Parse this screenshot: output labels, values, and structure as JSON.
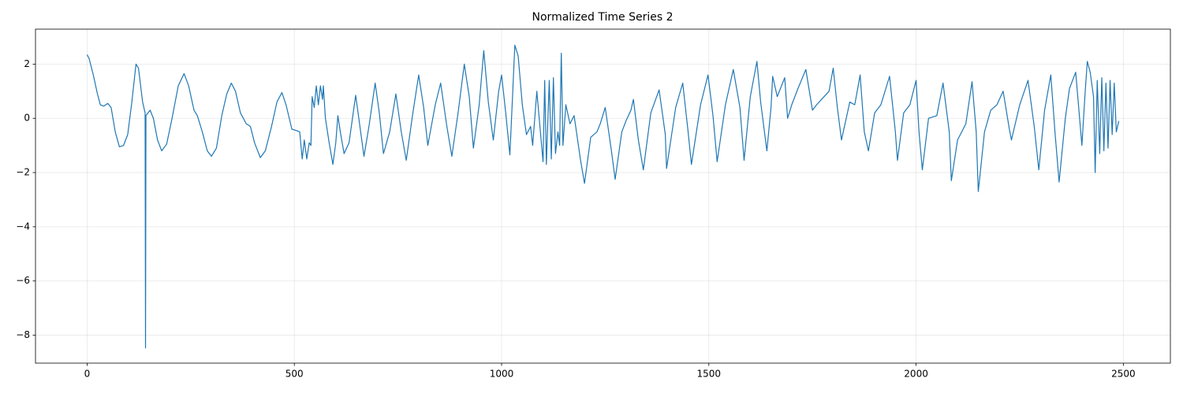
{
  "chart_data": {
    "type": "line",
    "title": "Normalized Time Series 2",
    "x": [
      0,
      5,
      15,
      25,
      32,
      40,
      50,
      58,
      68,
      78,
      88,
      98,
      108,
      118,
      124,
      134,
      140,
      141,
      142,
      152,
      160,
      170,
      180,
      192,
      205,
      220,
      234,
      245,
      258,
      266,
      278,
      290,
      300,
      312,
      325,
      337,
      348,
      358,
      370,
      384,
      394,
      404,
      418,
      430,
      445,
      458,
      470,
      480,
      494,
      505,
      513,
      519,
      524,
      530,
      536,
      540,
      543,
      548,
      553,
      558,
      563,
      568,
      570,
      575,
      584,
      593,
      600,
      605,
      612,
      620,
      632,
      648,
      660,
      668,
      680,
      695,
      705,
      715,
      730,
      745,
      758,
      770,
      785,
      800,
      812,
      822,
      840,
      853,
      868,
      880,
      895,
      910,
      922,
      932,
      946,
      957,
      968,
      980,
      993,
      1000,
      1010,
      1020,
      1032,
      1040,
      1050,
      1060,
      1070,
      1075,
      1085,
      1100,
      1104,
      1108,
      1115,
      1120,
      1125,
      1130,
      1136,
      1140,
      1144,
      1148,
      1155,
      1165,
      1175,
      1190,
      1200,
      1215,
      1230,
      1238,
      1250,
      1265,
      1274,
      1290,
      1300,
      1312,
      1318,
      1330,
      1342,
      1360,
      1380,
      1395,
      1398,
      1420,
      1437,
      1450,
      1458,
      1480,
      1498,
      1510,
      1520,
      1540,
      1559,
      1575,
      1585,
      1600,
      1616,
      1625,
      1640,
      1650,
      1654,
      1665,
      1683,
      1690,
      1700,
      1715,
      1734,
      1750,
      1760,
      1778,
      1790,
      1800,
      1810,
      1820,
      1840,
      1852,
      1865,
      1875,
      1885,
      1900,
      1915,
      1936,
      1950,
      1955,
      1970,
      1985,
      2000,
      2007,
      2015,
      2030,
      2050,
      2065,
      2080,
      2085,
      2100,
      2120,
      2135,
      2145,
      2150,
      2165,
      2180,
      2195,
      2210,
      2225,
      2230,
      2250,
      2270,
      2285,
      2296,
      2310,
      2325,
      2335,
      2345,
      2360,
      2370,
      2385,
      2390,
      2400,
      2408,
      2413,
      2420,
      2428,
      2432,
      2437,
      2443,
      2448,
      2453,
      2458,
      2463,
      2468,
      2473,
      2478,
      2483,
      2489
    ],
    "values": [
      2.35,
      2.2,
      1.6,
      0.9,
      0.5,
      0.45,
      0.55,
      0.4,
      -0.5,
      -1.05,
      -1.0,
      -0.6,
      0.6,
      2.0,
      1.85,
      0.6,
      0.2,
      -8.47,
      0.1,
      0.3,
      0,
      -0.8,
      -1.2,
      -0.95,
      0,
      1.2,
      1.65,
      1.2,
      0.3,
      0.1,
      -0.5,
      -1.2,
      -1.4,
      -1.1,
      0.1,
      0.9,
      1.3,
      1.0,
      0.2,
      -0.2,
      -0.3,
      -0.9,
      -1.45,
      -1.2,
      -0.3,
      0.6,
      0.95,
      0.5,
      -0.4,
      -0.45,
      -0.5,
      -1.5,
      -0.8,
      -1.5,
      -0.9,
      -1.0,
      0.8,
      0.4,
      1.2,
      0.5,
      1.2,
      0.7,
      1.2,
      0,
      -0.9,
      -1.7,
      -0.9,
      0.1,
      -0.6,
      -1.3,
      -0.9,
      0.85,
      -0.5,
      -1.4,
      -0.3,
      1.3,
      0.2,
      -1.3,
      -0.5,
      0.9,
      -0.5,
      -1.55,
      0.1,
      1.6,
      0.4,
      -1.0,
      0.5,
      1.3,
      -0.3,
      -1.4,
      0.2,
      2.0,
      0.8,
      -1.1,
      0.5,
      2.5,
      0.6,
      -0.8,
      1.0,
      1.6,
      0.2,
      -1.35,
      2.7,
      2.3,
      0.5,
      -0.6,
      -0.3,
      -1.0,
      1.0,
      -1.6,
      1.4,
      -1.7,
      1.4,
      -1.5,
      1.5,
      -1.3,
      -0.5,
      -1.0,
      2.4,
      -1.0,
      0.5,
      -0.2,
      0.1,
      -1.5,
      -2.4,
      -0.7,
      -0.5,
      -0.2,
      0.4,
      -1.2,
      -2.25,
      -0.5,
      -0.1,
      0.3,
      0.7,
      -0.8,
      -1.9,
      0.2,
      1.05,
      -0.6,
      -1.85,
      0.4,
      1.3,
      -0.5,
      -1.7,
      0.5,
      1.6,
      0.1,
      -1.6,
      0.5,
      1.8,
      0.4,
      -1.55,
      0.8,
      2.1,
      0.6,
      -1.2,
      0.4,
      1.55,
      0.8,
      1.5,
      0,
      0.5,
      1.1,
      1.8,
      0.3,
      0.5,
      0.8,
      1.0,
      1.85,
      0.4,
      -0.8,
      0.6,
      0.5,
      1.6,
      -0.5,
      -1.2,
      0.2,
      0.5,
      1.55,
      -0.5,
      -1.55,
      0.2,
      0.5,
      1.4,
      -0.5,
      -1.9,
      0.0,
      0.1,
      1.3,
      -0.5,
      -2.3,
      -0.8,
      -0.2,
      1.35,
      -0.5,
      -2.7,
      -0.5,
      0.3,
      0.5,
      1.0,
      -0.4,
      -0.8,
      0.5,
      1.4,
      -0.3,
      -1.9,
      0.3,
      1.6,
      -0.5,
      -2.35,
      0,
      1.1,
      1.7,
      0.8,
      -1.0,
      1.0,
      2.1,
      1.7,
      0.8,
      -2.0,
      1.4,
      -1.3,
      1.5,
      -1.2,
      1.3,
      -1.1,
      1.4,
      -0.6,
      1.3,
      -0.5,
      -0.1
    ],
    "color": "#1f77b4",
    "xlim": [
      -124.45,
      2613.45
    ],
    "ylim": [
      -9.03,
      3.29
    ],
    "xticks": [
      0,
      500,
      1000,
      1500,
      2000,
      2500
    ],
    "yticks": [
      {
        "value": -8,
        "label": "−8"
      },
      {
        "value": -6,
        "label": "−6"
      },
      {
        "value": -4,
        "label": "−4"
      },
      {
        "value": -2,
        "label": "−2"
      },
      0,
      2
    ],
    "grid": true
  }
}
